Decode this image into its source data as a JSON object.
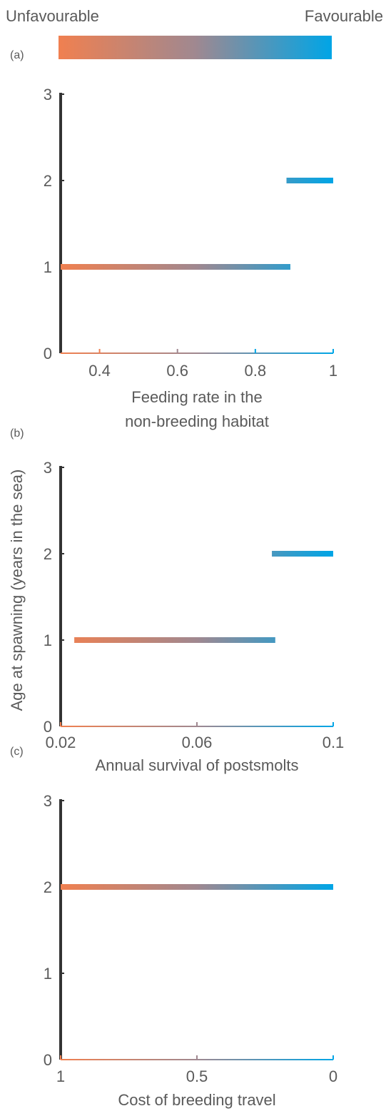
{
  "colorbar": {
    "low_label": "Unfavourable",
    "high_label": "Favourable",
    "low_color": "#f08050",
    "mid_color": "#a08890",
    "high_color": "#00a5e6"
  },
  "y_axis_label": "Age at spawning (years in the sea)",
  "chart_data": [
    {
      "type": "line",
      "panel_label": "(a)",
      "xlabel": [
        "Feeding rate in the",
        "non-breeding habitat"
      ],
      "ylabel": "Age at spawning (years in the sea)",
      "xlim": [
        0.3,
        1.0
      ],
      "ylim": [
        0,
        3
      ],
      "x_ticks": [
        0.4,
        0.6,
        0.8,
        1
      ],
      "x_tick_labels": [
        "0.4",
        "0.6",
        "0.8",
        "1"
      ],
      "y_ticks": [
        0,
        1,
        2,
        3
      ],
      "y_tick_labels": [
        "0",
        "1",
        "2",
        "3"
      ],
      "reversed_x": false,
      "series": [
        {
          "x": [
            0.3,
            0.89
          ],
          "y": [
            1,
            1
          ]
        },
        {
          "x": [
            0.88,
            1.0
          ],
          "y": [
            2,
            2
          ]
        }
      ]
    },
    {
      "type": "line",
      "panel_label": "(b)",
      "xlabel": [
        "Annual survival of postsmolts"
      ],
      "ylabel": "Age at spawning (years in the sea)",
      "xlim": [
        0.02,
        0.1
      ],
      "ylim": [
        0,
        3
      ],
      "x_ticks": [
        0.02,
        0.06,
        0.1
      ],
      "x_tick_labels": [
        "0.02",
        "0.06",
        "0.1"
      ],
      "y_ticks": [
        0,
        1,
        2,
        3
      ],
      "y_tick_labels": [
        "0",
        "1",
        "2",
        "3"
      ],
      "reversed_x": false,
      "series": [
        {
          "x": [
            0.024,
            0.083
          ],
          "y": [
            1,
            1
          ]
        },
        {
          "x": [
            0.082,
            0.1
          ],
          "y": [
            2,
            2
          ]
        }
      ]
    },
    {
      "type": "line",
      "panel_label": "(c)",
      "xlabel": [
        "Cost of breeding travel"
      ],
      "ylabel": "Age at spawning (years in the sea)",
      "xlim": [
        1,
        0
      ],
      "ylim": [
        0,
        3
      ],
      "x_ticks": [
        1,
        0.5,
        0
      ],
      "x_tick_labels": [
        "1",
        "0.5",
        "0"
      ],
      "y_ticks": [
        0,
        1,
        2,
        3
      ],
      "y_tick_labels": [
        "0",
        "1",
        "2",
        "3"
      ],
      "reversed_x": true,
      "series": [
        {
          "x": [
            1,
            0
          ],
          "y": [
            2,
            2
          ]
        }
      ]
    }
  ]
}
